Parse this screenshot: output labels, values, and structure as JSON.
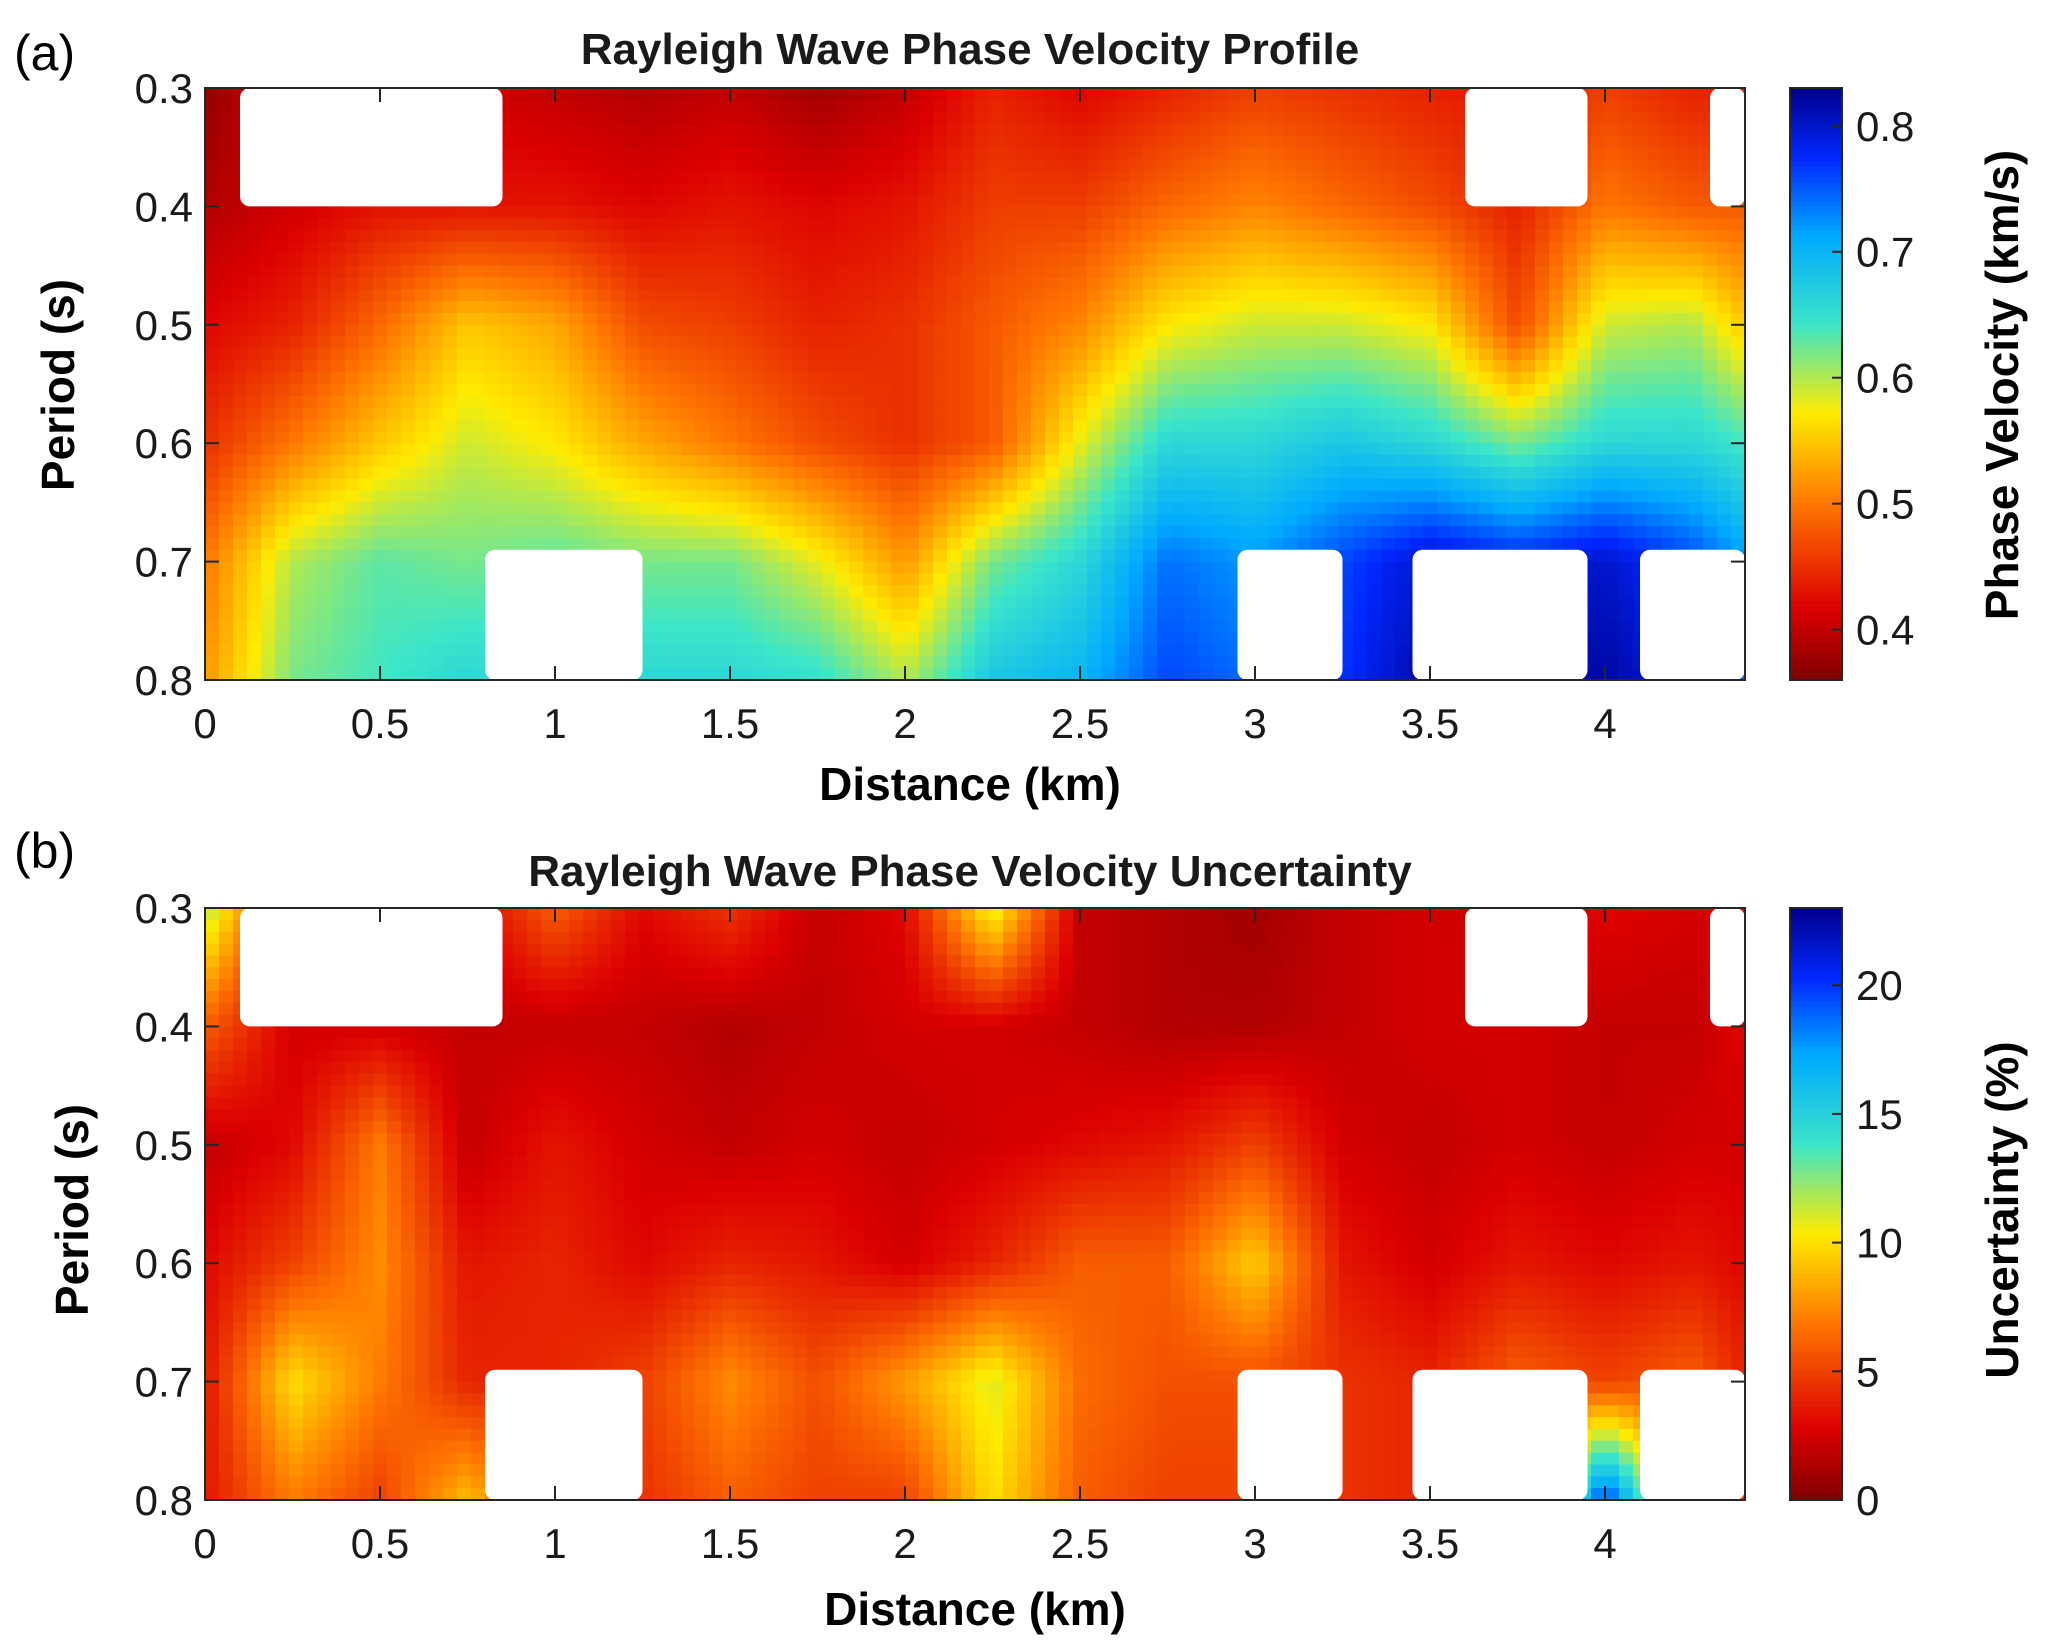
{
  "chart_data": [
    {
      "type": "heatmap",
      "panel_label": "(a)",
      "title": "Rayleigh Wave Phase Velocity Profile",
      "xlabel": "Distance (km)",
      "ylabel": "Period (s)",
      "xlim": [
        0,
        4.4
      ],
      "ylim": [
        0.3,
        0.8
      ],
      "y_reversed": true,
      "xticks": [
        0,
        0.5,
        1,
        1.5,
        2,
        2.5,
        3,
        3.5,
        4
      ],
      "xtick_labels": [
        "0",
        "0.5",
        "1",
        "1.5",
        "2",
        "2.5",
        "3",
        "3.5",
        "4"
      ],
      "yticks": [
        0.3,
        0.4,
        0.5,
        0.6,
        0.7,
        0.8
      ],
      "ytick_labels": [
        "0.3",
        "0.4",
        "0.5",
        "0.6",
        "0.7",
        "0.8"
      ],
      "colormap": "jet_reversed",
      "colorbar": {
        "label": "Phase Velocity (km/s)",
        "range": [
          0.36,
          0.83
        ],
        "ticks": [
          0.4,
          0.5,
          0.6,
          0.7,
          0.8
        ],
        "tick_labels": [
          "0.4",
          "0.5",
          "0.6",
          "0.7",
          "0.8"
        ]
      },
      "grid_x": [
        0,
        0.25,
        0.5,
        0.75,
        1.0,
        1.25,
        1.5,
        1.75,
        2.0,
        2.25,
        2.5,
        2.75,
        3.0,
        3.25,
        3.5,
        3.75,
        4.0,
        4.25,
        4.4
      ],
      "grid_y": [
        0.3,
        0.4,
        0.5,
        0.6,
        0.7,
        0.8
      ],
      "z": [
        [
          0.37,
          0.42,
          0.42,
          0.41,
          0.4,
          0.39,
          0.4,
          0.38,
          0.4,
          0.44,
          0.42,
          0.44,
          0.46,
          0.45,
          0.44,
          0.43,
          0.46,
          0.44,
          0.44
        ],
        [
          0.39,
          0.41,
          0.43,
          0.43,
          0.43,
          0.42,
          0.43,
          0.42,
          0.43,
          0.46,
          0.46,
          0.49,
          0.51,
          0.49,
          0.47,
          0.44,
          0.5,
          0.48,
          0.48
        ],
        [
          0.42,
          0.44,
          0.49,
          0.55,
          0.53,
          0.47,
          0.46,
          0.44,
          0.45,
          0.48,
          0.51,
          0.57,
          0.59,
          0.59,
          0.57,
          0.47,
          0.59,
          0.6,
          0.55
        ],
        [
          0.45,
          0.5,
          0.55,
          0.59,
          0.57,
          0.53,
          0.5,
          0.47,
          0.45,
          0.48,
          0.58,
          0.66,
          0.66,
          0.68,
          0.66,
          0.62,
          0.66,
          0.66,
          0.64
        ],
        [
          0.5,
          0.6,
          0.63,
          0.62,
          0.63,
          0.62,
          0.62,
          0.58,
          0.52,
          0.62,
          0.66,
          0.74,
          0.72,
          0.76,
          0.8,
          0.78,
          0.8,
          0.76,
          0.72
        ],
        [
          0.52,
          0.62,
          0.64,
          0.66,
          0.65,
          0.66,
          0.66,
          0.65,
          0.6,
          0.68,
          0.7,
          0.76,
          0.74,
          0.77,
          0.82,
          0.8,
          0.82,
          0.78,
          0.74
        ]
      ],
      "masked_regions": [
        {
          "x": [
            0.1,
            0.85
          ],
          "y": [
            0.3,
            0.4
          ]
        },
        {
          "x": [
            3.6,
            3.95
          ],
          "y": [
            0.3,
            0.4
          ]
        },
        {
          "x": [
            4.3,
            4.4
          ],
          "y": [
            0.3,
            0.4
          ]
        },
        {
          "x": [
            0.8,
            1.25
          ],
          "y": [
            0.69,
            0.8
          ]
        },
        {
          "x": [
            2.95,
            3.25
          ],
          "y": [
            0.69,
            0.8
          ]
        },
        {
          "x": [
            3.45,
            3.95
          ],
          "y": [
            0.69,
            0.8
          ]
        },
        {
          "x": [
            4.1,
            4.4
          ],
          "y": [
            0.69,
            0.8
          ]
        }
      ]
    },
    {
      "type": "heatmap",
      "panel_label": "(b)",
      "title": "Rayleigh Wave Phase Velocity Uncertainty",
      "xlabel": "Distance (km)",
      "ylabel": "Period (s)",
      "xlim": [
        0,
        4.4
      ],
      "ylim": [
        0.3,
        0.8
      ],
      "y_reversed": true,
      "xticks": [
        0,
        0.5,
        1,
        1.5,
        2,
        2.5,
        3,
        3.5,
        4
      ],
      "xtick_labels": [
        "0",
        "0.5",
        "1",
        "1.5",
        "2",
        "2.5",
        "3",
        "3.5",
        "4"
      ],
      "yticks": [
        0.3,
        0.4,
        0.5,
        0.6,
        0.7,
        0.8
      ],
      "yticks_labels_note": "",
      "ytick_labels": [
        "0.3",
        "0.4",
        "0.5",
        "0.6",
        "0.7",
        "0.8"
      ],
      "colormap": "jet_reversed",
      "colorbar": {
        "label": "Uncertainty (%)",
        "range": [
          0,
          23
        ],
        "ticks": [
          0,
          5,
          10,
          15,
          20
        ],
        "tick_labels": [
          "0",
          "5",
          "10",
          "15",
          "20"
        ]
      },
      "grid_x": [
        0,
        0.25,
        0.5,
        0.75,
        1.0,
        1.25,
        1.5,
        1.75,
        2.0,
        2.25,
        2.5,
        2.75,
        3.0,
        3.25,
        3.5,
        3.75,
        4.0,
        4.25,
        4.4
      ],
      "grid_y": [
        0.3,
        0.4,
        0.5,
        0.6,
        0.7,
        0.8
      ],
      "z": [
        [
          12.0,
          3.0,
          2.0,
          2.5,
          6.0,
          3.0,
          4.5,
          2.0,
          3.0,
          11.0,
          2.0,
          1.5,
          1.0,
          2.0,
          2.5,
          2.0,
          3.0,
          2.5,
          3.0
        ],
        [
          6.0,
          2.5,
          2.5,
          2.0,
          2.0,
          2.0,
          1.5,
          2.0,
          2.5,
          2.5,
          2.0,
          1.5,
          1.5,
          2.0,
          2.5,
          2.5,
          2.0,
          2.0,
          3.0
        ],
        [
          2.0,
          3.0,
          7.0,
          2.0,
          3.5,
          2.5,
          2.0,
          2.5,
          2.0,
          2.5,
          3.0,
          3.5,
          5.0,
          2.5,
          2.0,
          2.5,
          2.0,
          2.5,
          2.5
        ],
        [
          3.0,
          5.0,
          7.5,
          3.5,
          4.0,
          3.0,
          4.0,
          3.5,
          2.5,
          4.0,
          6.0,
          6.0,
          9.5,
          3.5,
          2.5,
          3.5,
          3.0,
          3.5,
          3.0
        ],
        [
          3.5,
          10.0,
          7.0,
          4.0,
          4.0,
          5.0,
          7.5,
          5.5,
          8.0,
          11.0,
          6.5,
          5.5,
          5.5,
          4.5,
          4.0,
          6.0,
          5.0,
          6.0,
          4.0
        ],
        [
          3.5,
          7.0,
          5.0,
          9.0,
          4.0,
          4.5,
          6.0,
          5.0,
          5.0,
          10.0,
          6.0,
          5.0,
          5.0,
          4.5,
          4.0,
          5.0,
          20.0,
          6.0,
          4.5
        ]
      ],
      "masked_regions": [
        {
          "x": [
            0.1,
            0.85
          ],
          "y": [
            0.3,
            0.4
          ]
        },
        {
          "x": [
            3.6,
            3.95
          ],
          "y": [
            0.3,
            0.4
          ]
        },
        {
          "x": [
            4.3,
            4.4
          ],
          "y": [
            0.3,
            0.4
          ]
        },
        {
          "x": [
            0.8,
            1.25
          ],
          "y": [
            0.69,
            0.8
          ]
        },
        {
          "x": [
            2.95,
            3.25
          ],
          "y": [
            0.69,
            0.8
          ]
        },
        {
          "x": [
            3.45,
            3.95
          ],
          "y": [
            0.69,
            0.8
          ]
        },
        {
          "x": [
            4.1,
            4.4
          ],
          "y": [
            0.69,
            0.8
          ]
        }
      ]
    }
  ]
}
